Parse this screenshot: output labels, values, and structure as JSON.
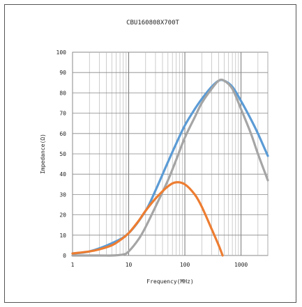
{
  "chart_data": {
    "type": "line",
    "title": "CBU160808X700T",
    "xlabel": "Frequency(MHz)",
    "ylabel": "Impedance(Ω)",
    "x_scale": "log",
    "xlim": [
      1,
      3000
    ],
    "ylim": [
      0,
      100
    ],
    "x_ticks": [
      1,
      10,
      100,
      1000
    ],
    "y_ticks": [
      0,
      10,
      20,
      30,
      40,
      50,
      60,
      70,
      80,
      90,
      100
    ],
    "grid": true,
    "legend": "none",
    "series": [
      {
        "color": "#5b9bd5",
        "points": [
          [
            1,
            1
          ],
          [
            2,
            2
          ],
          [
            5,
            6
          ],
          [
            10,
            11
          ],
          [
            20,
            22
          ],
          [
            30,
            32
          ],
          [
            50,
            46
          ],
          [
            70,
            55
          ],
          [
            100,
            64
          ],
          [
            150,
            72
          ],
          [
            200,
            77
          ],
          [
            300,
            83
          ],
          [
            400,
            86
          ],
          [
            500,
            86
          ],
          [
            700,
            83
          ],
          [
            1000,
            76
          ],
          [
            1500,
            67
          ],
          [
            2000,
            60
          ],
          [
            3000,
            49
          ]
        ]
      },
      {
        "color": "#a5a5a5",
        "points": [
          [
            1,
            0
          ],
          [
            3,
            0
          ],
          [
            5,
            0
          ],
          [
            8,
            0.5
          ],
          [
            10,
            2
          ],
          [
            15,
            8
          ],
          [
            20,
            14
          ],
          [
            30,
            24
          ],
          [
            50,
            37
          ],
          [
            70,
            47
          ],
          [
            100,
            58
          ],
          [
            150,
            68
          ],
          [
            200,
            75
          ],
          [
            300,
            82
          ],
          [
            400,
            86
          ],
          [
            500,
            86
          ],
          [
            700,
            82
          ],
          [
            1000,
            72
          ],
          [
            1500,
            60
          ],
          [
            2000,
            50
          ],
          [
            3000,
            37
          ]
        ]
      },
      {
        "color": "#ed7d31",
        "points": [
          [
            1,
            1
          ],
          [
            2,
            2
          ],
          [
            3,
            3
          ],
          [
            5,
            5
          ],
          [
            7,
            7.5
          ],
          [
            10,
            11
          ],
          [
            15,
            17
          ],
          [
            20,
            22
          ],
          [
            30,
            28
          ],
          [
            50,
            34
          ],
          [
            70,
            36
          ],
          [
            100,
            35
          ],
          [
            150,
            30
          ],
          [
            200,
            24
          ],
          [
            300,
            13
          ],
          [
            400,
            5
          ],
          [
            470,
            0
          ]
        ]
      }
    ]
  }
}
